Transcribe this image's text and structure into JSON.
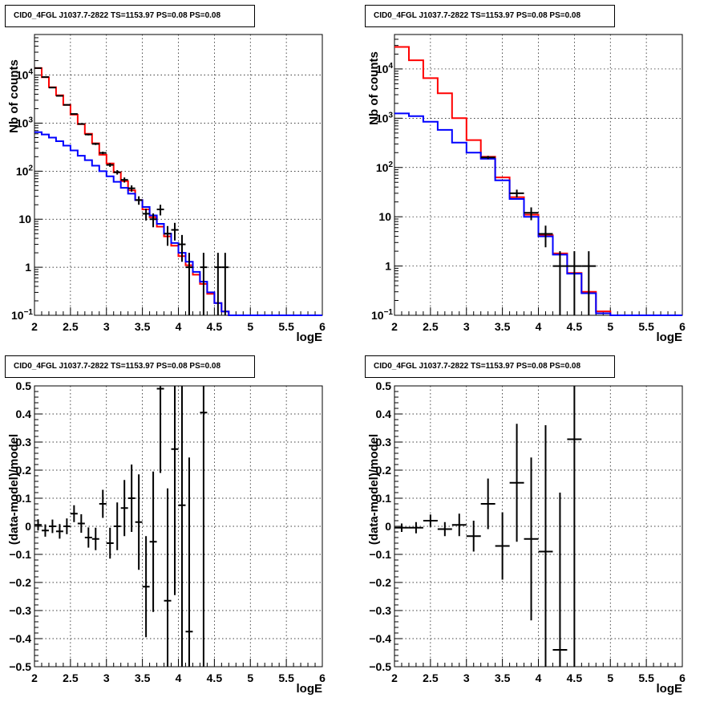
{
  "chart_data": [
    {
      "type": "line",
      "title": "CID0_4FGL J1037.7-2822 TS=1153.97 PS=0.08 PS=0.08",
      "xlabel": "logE",
      "ylabel": "Nb of counts",
      "log_y": true,
      "xlim": [
        2,
        6
      ],
      "ylim": [
        0.1,
        70000
      ],
      "grid": true,
      "x_ticks": [
        "2",
        "2.5",
        "3",
        "3.5",
        "4",
        "4.5",
        "5",
        "5.5",
        "6"
      ],
      "y_ticks": [
        {
          "v": 0.1,
          "label": "10",
          "exp": "−1"
        },
        {
          "v": 1,
          "label": "1",
          "exp": ""
        },
        {
          "v": 10,
          "label": "10",
          "exp": ""
        },
        {
          "v": 100,
          "label": "10",
          "exp": "2"
        },
        {
          "v": 1000,
          "label": "10",
          "exp": "3"
        },
        {
          "v": 10000,
          "label": "10",
          "exp": "4"
        }
      ],
      "series": [
        {
          "color": "#ff0000",
          "style": "step",
          "edges": [
            2,
            2.1,
            2.2,
            2.3,
            2.4,
            2.5,
            2.6,
            2.7,
            2.8,
            2.9,
            3,
            3.1,
            3.2,
            3.3,
            3.4,
            3.5,
            3.6,
            3.7,
            3.8,
            3.9,
            4,
            4.1,
            4.2,
            4.3,
            4.4,
            4.5,
            4.6,
            4.7,
            4.8,
            4.9,
            5,
            5.1,
            5.2,
            5.3,
            5.4,
            5.5,
            5.6,
            5.7,
            5.8,
            5.9,
            6
          ],
          "values": [
            14000,
            9000,
            5600,
            3800,
            2400,
            1500,
            950,
            600,
            380,
            220,
            145,
            95,
            62,
            40,
            25,
            16,
            11,
            7,
            4.4,
            2.8,
            1.7,
            1.1,
            0.7,
            0.45,
            0.28,
            0.18,
            0.12,
            0.1,
            0.1,
            0.1,
            0.1,
            0.1,
            0.1,
            0.1,
            0.1,
            0.1,
            0.1,
            0.1,
            0.1,
            0.1
          ]
        },
        {
          "color": "#0000ff",
          "style": "step",
          "edges": [
            2,
            2.1,
            2.2,
            2.3,
            2.4,
            2.5,
            2.6,
            2.7,
            2.8,
            2.9,
            3,
            3.1,
            3.2,
            3.3,
            3.4,
            3.5,
            3.6,
            3.7,
            3.8,
            3.9,
            4,
            4.1,
            4.2,
            4.3,
            4.4,
            4.5,
            4.6,
            4.7,
            4.8,
            4.9,
            5,
            5.1,
            5.2,
            5.3,
            5.4,
            5.5,
            5.6,
            5.7,
            5.8,
            5.9,
            6
          ],
          "values": [
            650,
            580,
            500,
            420,
            340,
            270,
            210,
            170,
            130,
            100,
            78,
            60,
            45,
            34,
            25,
            18,
            12,
            8,
            5,
            3.2,
            2,
            1.3,
            0.8,
            0.5,
            0.3,
            0.18,
            0.12,
            0.1,
            0.1,
            0.1,
            0.1,
            0.1,
            0.1,
            0.1,
            0.1,
            0.1,
            0.1,
            0.1,
            0.1,
            0.1
          ]
        },
        {
          "color": "#000000",
          "style": "errorbars",
          "points": [
            {
              "x": 2.05,
              "y": 14000,
              "dx": 0.05,
              "dy": 120
            },
            {
              "x": 2.15,
              "y": 9100,
              "dx": 0.05,
              "dy": 95
            },
            {
              "x": 2.25,
              "y": 5500,
              "dx": 0.05,
              "dy": 74
            },
            {
              "x": 2.35,
              "y": 3700,
              "dx": 0.05,
              "dy": 61
            },
            {
              "x": 2.45,
              "y": 2400,
              "dx": 0.05,
              "dy": 49
            },
            {
              "x": 2.55,
              "y": 1550,
              "dx": 0.05,
              "dy": 39
            },
            {
              "x": 2.65,
              "y": 960,
              "dx": 0.05,
              "dy": 31
            },
            {
              "x": 2.75,
              "y": 580,
              "dx": 0.05,
              "dy": 24
            },
            {
              "x": 2.85,
              "y": 370,
              "dx": 0.05,
              "dy": 19
            },
            {
              "x": 2.95,
              "y": 240,
              "dx": 0.05,
              "dy": 15
            },
            {
              "x": 3.05,
              "y": 135,
              "dx": 0.05,
              "dy": 12
            },
            {
              "x": 3.15,
              "y": 95,
              "dx": 0.05,
              "dy": 10
            },
            {
              "x": 3.25,
              "y": 66,
              "dx": 0.05,
              "dy": 8
            },
            {
              "x": 3.35,
              "y": 44,
              "dx": 0.05,
              "dy": 6.6
            },
            {
              "x": 3.45,
              "y": 25,
              "dx": 0.05,
              "dy": 5
            },
            {
              "x": 3.55,
              "y": 13,
              "dx": 0.05,
              "dy": 3.6
            },
            {
              "x": 3.65,
              "y": 10,
              "dx": 0.05,
              "dy": 3.2
            },
            {
              "x": 3.75,
              "y": 16,
              "dx": 0.05,
              "dy": 4
            },
            {
              "x": 3.85,
              "y": 5,
              "dx": 0.05,
              "dy": 2.2
            },
            {
              "x": 3.95,
              "y": 6,
              "dx": 0.05,
              "dy": 2.4
            },
            {
              "x": 4.05,
              "y": 3,
              "dx": 0.05,
              "dy": 1.7
            },
            {
              "x": 4.15,
              "y": 1,
              "dx": 0.05,
              "dy": 1
            },
            {
              "x": 4.35,
              "y": 1,
              "dx": 0.05,
              "dy": 1
            },
            {
              "x": 4.55,
              "y": 1,
              "dx": 0.05,
              "dy": 1
            },
            {
              "x": 4.65,
              "y": 1,
              "dx": 0.05,
              "dy": 1
            }
          ]
        }
      ]
    },
    {
      "type": "line",
      "title": "CID0_4FGL J1037.7-2822 TS=1153.97 PS=0.08 PS=0.08",
      "xlabel": "logE",
      "ylabel": "Nb of counts",
      "log_y": true,
      "xlim": [
        2,
        6
      ],
      "ylim": [
        0.1,
        50000
      ],
      "grid": true,
      "x_ticks": [
        "2",
        "2.5",
        "3",
        "3.5",
        "4",
        "4.5",
        "5",
        "5.5",
        "6"
      ],
      "y_ticks": [
        {
          "v": 0.1,
          "label": "10",
          "exp": "−1"
        },
        {
          "v": 1,
          "label": "1",
          "exp": ""
        },
        {
          "v": 10,
          "label": "10",
          "exp": ""
        },
        {
          "v": 100,
          "label": "10",
          "exp": "2"
        },
        {
          "v": 1000,
          "label": "10",
          "exp": "3"
        },
        {
          "v": 10000,
          "label": "10",
          "exp": "4"
        }
      ],
      "series": [
        {
          "color": "#ff0000",
          "style": "step",
          "edges": [
            2,
            2.2,
            2.4,
            2.6,
            2.8,
            3,
            3.2,
            3.4,
            3.6,
            3.8,
            4,
            4.2,
            4.4,
            4.6,
            4.8,
            5,
            5.2,
            5.4,
            5.6,
            5.8,
            6
          ],
          "values": [
            28000,
            15000,
            6500,
            3200,
            1000,
            360,
            165,
            63,
            25,
            11,
            4.2,
            1.8,
            0.72,
            0.3,
            0.12,
            0.1,
            0.1,
            0.1,
            0.1,
            0.1
          ],
          "pad": 0.01
        },
        {
          "color": "#0000ff",
          "style": "step",
          "edges": [
            2,
            2.2,
            2.4,
            2.6,
            2.8,
            3,
            3.2,
            3.4,
            3.6,
            3.8,
            4,
            4.2,
            4.4,
            4.6,
            4.8,
            5,
            5.2,
            5.4,
            5.6,
            5.8,
            6
          ],
          "values": [
            1250,
            1100,
            850,
            580,
            320,
            200,
            150,
            55,
            23,
            10,
            4,
            1.7,
            0.7,
            0.28,
            0.11,
            0.1,
            0.1,
            0.1,
            0.1,
            0.1
          ]
        },
        {
          "color": "#000000",
          "style": "errorbars",
          "points": [
            {
              "x": 3.3,
              "y": 160,
              "dx": 0.1,
              "dy": 12
            },
            {
              "x": 3.7,
              "y": 30,
              "dx": 0.1,
              "dy": 5.5
            },
            {
              "x": 3.9,
              "y": 12,
              "dx": 0.1,
              "dy": 3.5
            },
            {
              "x": 4.1,
              "y": 4.5,
              "dx": 0.1,
              "dy": 2.1
            },
            {
              "x": 4.3,
              "y": 1,
              "dx": 0.1,
              "dy": 1
            },
            {
              "x": 4.5,
              "y": 1,
              "dx": 0.1,
              "dy": 1
            },
            {
              "x": 4.7,
              "y": 1,
              "dx": 0.1,
              "dy": 1
            }
          ]
        }
      ]
    },
    {
      "type": "scatter",
      "title": "CID0_4FGL J1037.7-2822 TS=1153.97 PS=0.08 PS=0.08",
      "xlabel": "logE",
      "ylabel": "(data-model)/model",
      "log_y": false,
      "xlim": [
        2,
        6
      ],
      "ylim": [
        -0.5,
        0.5
      ],
      "grid": true,
      "x_ticks": [
        "2",
        "2.5",
        "3",
        "3.5",
        "4",
        "4.5",
        "5",
        "5.5",
        "6"
      ],
      "y_ticks": [
        {
          "v": -0.5,
          "label": "−0.5"
        },
        {
          "v": -0.4,
          "label": "−0.4"
        },
        {
          "v": -0.3,
          "label": "−0.3"
        },
        {
          "v": -0.2,
          "label": "−0.2"
        },
        {
          "v": -0.1,
          "label": "−0.1"
        },
        {
          "v": 0,
          "label": "0"
        },
        {
          "v": 0.1,
          "label": "0.1"
        },
        {
          "v": 0.2,
          "label": "0.2"
        },
        {
          "v": 0.3,
          "label": "0.3"
        },
        {
          "v": 0.4,
          "label": "0.4"
        },
        {
          "v": 0.5,
          "label": "0.5"
        }
      ],
      "series": [
        {
          "color": "#000000",
          "style": "errorbars",
          "points": [
            {
              "x": 2.05,
              "y": 0.005,
              "dx": 0.05,
              "dy": 0.02
            },
            {
              "x": 2.15,
              "y": -0.015,
              "dx": 0.05,
              "dy": 0.022
            },
            {
              "x": 2.25,
              "y": 0.0,
              "dx": 0.05,
              "dy": 0.024
            },
            {
              "x": 2.35,
              "y": -0.018,
              "dx": 0.05,
              "dy": 0.026
            },
            {
              "x": 2.45,
              "y": 0.0,
              "dx": 0.05,
              "dy": 0.028
            },
            {
              "x": 2.55,
              "y": 0.045,
              "dx": 0.05,
              "dy": 0.03
            },
            {
              "x": 2.65,
              "y": 0.01,
              "dx": 0.05,
              "dy": 0.033
            },
            {
              "x": 2.75,
              "y": -0.04,
              "dx": 0.05,
              "dy": 0.036
            },
            {
              "x": 2.85,
              "y": -0.045,
              "dx": 0.05,
              "dy": 0.04
            },
            {
              "x": 2.95,
              "y": 0.08,
              "dx": 0.05,
              "dy": 0.05
            },
            {
              "x": 3.05,
              "y": -0.06,
              "dx": 0.05,
              "dy": 0.055
            },
            {
              "x": 3.15,
              "y": 0.0,
              "dx": 0.05,
              "dy": 0.085
            },
            {
              "x": 3.25,
              "y": 0.065,
              "dx": 0.05,
              "dy": 0.1
            },
            {
              "x": 3.35,
              "y": 0.1,
              "dx": 0.05,
              "dy": 0.12
            },
            {
              "x": 3.45,
              "y": 0.015,
              "dx": 0.05,
              "dy": 0.17
            },
            {
              "x": 3.55,
              "y": -0.215,
              "dx": 0.05,
              "dy": 0.18
            },
            {
              "x": 3.65,
              "y": -0.055,
              "dx": 0.05,
              "dy": 0.25
            },
            {
              "x": 3.75,
              "y": 0.49,
              "dx": 0.05,
              "dy": 0.3
            },
            {
              "x": 3.85,
              "y": -0.265,
              "dx": 0.05,
              "dy": 0.4
            },
            {
              "x": 3.95,
              "y": 0.275,
              "dx": 0.05,
              "dy": 0.52
            },
            {
              "x": 4.05,
              "y": 0.075,
              "dx": 0.05,
              "dy": 0.6
            },
            {
              "x": 4.15,
              "y": -0.375,
              "dx": 0.05,
              "dy": 0.62
            },
            {
              "x": 4.35,
              "y": 0.405,
              "dx": 0.05,
              "dy": 1.4
            }
          ]
        }
      ]
    },
    {
      "type": "scatter",
      "title": "CID0_4FGL J1037.7-2822 TS=1153.97 PS=0.08 PS=0.08",
      "xlabel": "logE",
      "ylabel": "(data-model)/model",
      "log_y": false,
      "xlim": [
        2,
        6
      ],
      "ylim": [
        -0.5,
        0.5
      ],
      "grid": true,
      "x_ticks": [
        "2",
        "2.5",
        "3",
        "3.5",
        "4",
        "4.5",
        "5",
        "5.5",
        "6"
      ],
      "y_ticks": [
        {
          "v": -0.5,
          "label": "−0.5"
        },
        {
          "v": -0.4,
          "label": "−0.4"
        },
        {
          "v": -0.3,
          "label": "−0.3"
        },
        {
          "v": -0.2,
          "label": "−0.2"
        },
        {
          "v": -0.1,
          "label": "−0.1"
        },
        {
          "v": 0,
          "label": "0"
        },
        {
          "v": 0.1,
          "label": "0.1"
        },
        {
          "v": 0.2,
          "label": "0.2"
        },
        {
          "v": 0.3,
          "label": "0.3"
        },
        {
          "v": 0.4,
          "label": "0.4"
        },
        {
          "v": 0.5,
          "label": "0.5"
        }
      ],
      "series": [
        {
          "color": "#000000",
          "style": "errorbars",
          "points": [
            {
              "x": 2.1,
              "y": -0.005,
              "dx": 0.1,
              "dy": 0.015
            },
            {
              "x": 2.3,
              "y": -0.005,
              "dx": 0.1,
              "dy": 0.02
            },
            {
              "x": 2.5,
              "y": 0.02,
              "dx": 0.1,
              "dy": 0.022
            },
            {
              "x": 2.7,
              "y": -0.01,
              "dx": 0.1,
              "dy": 0.025
            },
            {
              "x": 2.9,
              "y": 0.005,
              "dx": 0.1,
              "dy": 0.04
            },
            {
              "x": 3.1,
              "y": -0.035,
              "dx": 0.1,
              "dy": 0.055
            },
            {
              "x": 3.3,
              "y": 0.08,
              "dx": 0.1,
              "dy": 0.09
            },
            {
              "x": 3.5,
              "y": -0.07,
              "dx": 0.1,
              "dy": 0.12
            },
            {
              "x": 3.7,
              "y": 0.155,
              "dx": 0.1,
              "dy": 0.21
            },
            {
              "x": 3.9,
              "y": -0.045,
              "dx": 0.1,
              "dy": 0.29
            },
            {
              "x": 4.1,
              "y": -0.09,
              "dx": 0.1,
              "dy": 0.45
            },
            {
              "x": 4.3,
              "y": -0.44,
              "dx": 0.1,
              "dy": 0.56
            },
            {
              "x": 4.5,
              "y": 0.31,
              "dx": 0.1,
              "dy": 1.2
            }
          ]
        }
      ]
    }
  ]
}
